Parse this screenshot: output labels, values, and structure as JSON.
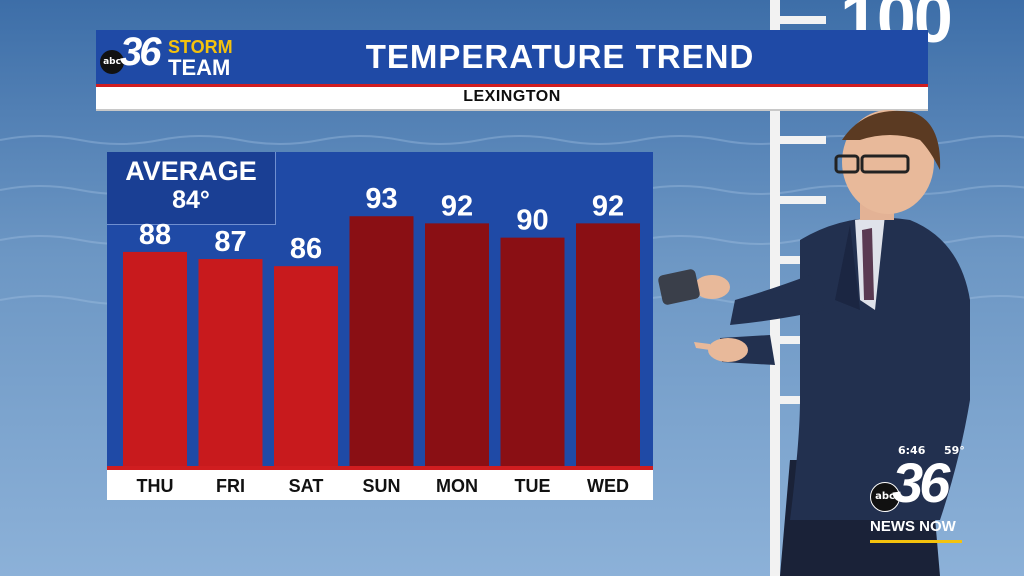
{
  "header": {
    "logo_number": "36",
    "logo_network": "abc",
    "logo_line1": "STORM",
    "logo_line2": "TEAM",
    "title": "TEMPERATURE TREND",
    "location": "LEXINGTON"
  },
  "average": {
    "label": "AVERAGE",
    "value": "84°"
  },
  "wall": {
    "thermometer_value": "100"
  },
  "colors": {
    "header_blue": "#1f4aa6",
    "accent_red": "#d01d20",
    "bar_bright": "#c81a1d",
    "bar_dark": "#8a0f14",
    "brand_yellow": "#f4c20d"
  },
  "chart_data": {
    "type": "bar",
    "title": "TEMPERATURE TREND",
    "subtitle": "LEXINGTON",
    "categories": [
      "THU",
      "FRI",
      "SAT",
      "SUN",
      "MON",
      "TUE",
      "WED"
    ],
    "values": [
      88,
      87,
      86,
      93,
      92,
      90,
      92
    ],
    "value_labels": [
      "88",
      "87",
      "86",
      "93",
      "92",
      "90",
      "92"
    ],
    "bar_shades": [
      "bright",
      "bright",
      "bright",
      "dark",
      "dark",
      "dark",
      "dark"
    ],
    "ylim": [
      58,
      102
    ],
    "grid": false,
    "legend": "none"
  },
  "station_bug": {
    "time": "6:46",
    "temperature": "59°",
    "network": "abc",
    "channel": "36",
    "brand": "NEWS NOW"
  }
}
